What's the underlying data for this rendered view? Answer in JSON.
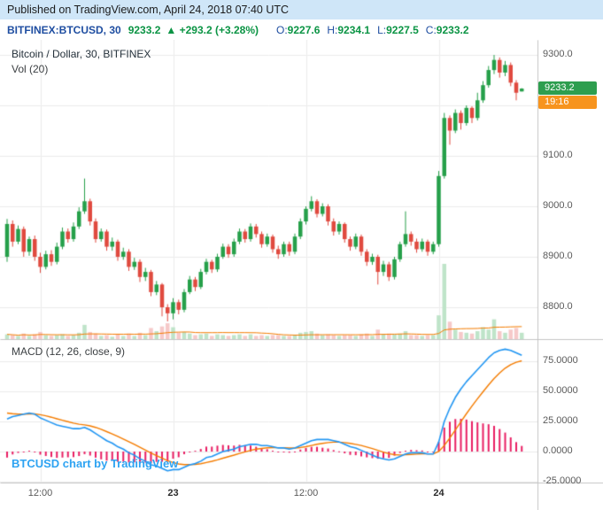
{
  "header": {
    "published": "Published on TradingView.com, April 24, 2018 07:40 UTC"
  },
  "ticker": {
    "symbol": "BITFINEX:BTCUSD, 30",
    "price": "9233.2",
    "change": "▲ +293.2 (+3.28%)",
    "o_label": "O:",
    "o_value": "9227.6",
    "h_label": "H:",
    "h_value": "9234.1",
    "l_label": "L:",
    "l_value": "9227.5",
    "c_label": "C:",
    "c_value": "9233.2"
  },
  "legend": {
    "main_title": "Bitcoin / Dollar, 30, BITFINEX",
    "volume": "Vol (20)",
    "macd": "MACD (12, 26, close, 9)"
  },
  "watermark": {
    "text": "BTCUSD chart by TradingView"
  },
  "axis": {
    "last_price": "9233.2",
    "countdown": "19:16"
  },
  "colors": {
    "up": "#26a04a",
    "down": "#e04a3f",
    "vol_up": "#bfe4c9",
    "vol_down": "#f6c9c9",
    "vol_ma": "#f57c00",
    "macd_line": "#2196f3",
    "signal_line": "#f57c00",
    "histogram": "#e91e63",
    "grid": "#ececec",
    "separator": "#c5c5c5",
    "price_tag_bg": "#2e9e4f",
    "countdown_bg": "#f7941e",
    "published_bg": "#cfe6f8"
  },
  "chart_data": {
    "type": "candlestick",
    "symbol": "BITFINEX:BTCUSD",
    "interval_minutes": 30,
    "title": "Bitcoin / Dollar, 30, BITFINEX",
    "price_axis": {
      "ticks": [
        9300,
        9200,
        9100,
        9000,
        8900,
        8800
      ],
      "tick_labels": [
        "9300.0",
        "9200.0",
        "9100.0",
        "9000.0",
        "8900.0",
        "8800.0"
      ],
      "visible_range": [
        8737,
        9330
      ]
    },
    "time_axis": {
      "ticks": [
        {
          "index": 6,
          "label": "12:00",
          "bold": false
        },
        {
          "index": 30,
          "label": "23",
          "bold": true
        },
        {
          "index": 54,
          "label": "12:00",
          "bold": false
        },
        {
          "index": 78,
          "label": "24",
          "bold": true
        }
      ]
    },
    "candles_ohlcv": [
      [
        8900,
        8975,
        8890,
        8965,
        6
      ],
      [
        8965,
        8972,
        8920,
        8930,
        5
      ],
      [
        8930,
        8962,
        8925,
        8955,
        4
      ],
      [
        8955,
        8960,
        8900,
        8910,
        7
      ],
      [
        8910,
        8940,
        8902,
        8935,
        4
      ],
      [
        8935,
        8942,
        8892,
        8900,
        6
      ],
      [
        8900,
        8908,
        8868,
        8880,
        9
      ],
      [
        8880,
        8912,
        8875,
        8905,
        5
      ],
      [
        8905,
        8913,
        8882,
        8890,
        4
      ],
      [
        8890,
        8928,
        8885,
        8920,
        5
      ],
      [
        8920,
        8958,
        8915,
        8950,
        6
      ],
      [
        8950,
        8956,
        8928,
        8935,
        4
      ],
      [
        8935,
        8968,
        8930,
        8960,
        5
      ],
      [
        8960,
        8998,
        8955,
        8990,
        8
      ],
      [
        8990,
        9055,
        8985,
        9010,
        18
      ],
      [
        9010,
        9015,
        8962,
        8970,
        9
      ],
      [
        8970,
        8976,
        8928,
        8935,
        7
      ],
      [
        8935,
        8956,
        8930,
        8950,
        4
      ],
      [
        8950,
        8954,
        8912,
        8920,
        5
      ],
      [
        8920,
        8938,
        8912,
        8930,
        3
      ],
      [
        8930,
        8934,
        8892,
        8900,
        6
      ],
      [
        8900,
        8918,
        8894,
        8910,
        4
      ],
      [
        8910,
        8915,
        8872,
        8880,
        7
      ],
      [
        8880,
        8898,
        8874,
        8890,
        4
      ],
      [
        8890,
        8895,
        8850,
        8860,
        8
      ],
      [
        8860,
        8878,
        8852,
        8870,
        5
      ],
      [
        8870,
        8874,
        8822,
        8830,
        14
      ],
      [
        8830,
        8852,
        8824,
        8845,
        10
      ],
      [
        8845,
        8848,
        8782,
        8800,
        16
      ],
      [
        8800,
        8806,
        8772,
        8788,
        20
      ],
      [
        8788,
        8818,
        8776,
        8810,
        15
      ],
      [
        8810,
        8815,
        8786,
        8795,
        8
      ],
      [
        8795,
        8836,
        8790,
        8830,
        9
      ],
      [
        8830,
        8862,
        8826,
        8855,
        7
      ],
      [
        8855,
        8860,
        8832,
        8840,
        5
      ],
      [
        8840,
        8876,
        8836,
        8870,
        6
      ],
      [
        8870,
        8896,
        8865,
        8890,
        7
      ],
      [
        8890,
        8894,
        8868,
        8875,
        4
      ],
      [
        8875,
        8906,
        8870,
        8900,
        6
      ],
      [
        8900,
        8926,
        8896,
        8920,
        5
      ],
      [
        8920,
        8925,
        8898,
        8905,
        4
      ],
      [
        8905,
        8936,
        8900,
        8930,
        5
      ],
      [
        8930,
        8956,
        8925,
        8950,
        6
      ],
      [
        8950,
        8955,
        8928,
        8935,
        4
      ],
      [
        8935,
        8966,
        8930,
        8960,
        6
      ],
      [
        8960,
        8965,
        8938,
        8945,
        4
      ],
      [
        8945,
        8950,
        8918,
        8925,
        5
      ],
      [
        8925,
        8946,
        8920,
        8940,
        4
      ],
      [
        8940,
        8944,
        8908,
        8915,
        5
      ],
      [
        8915,
        8922,
        8896,
        8905,
        5
      ],
      [
        8905,
        8930,
        8900,
        8925,
        4
      ],
      [
        8925,
        8930,
        8902,
        8910,
        4
      ],
      [
        8910,
        8946,
        8905,
        8940,
        5
      ],
      [
        8940,
        8976,
        8935,
        8970,
        8
      ],
      [
        8970,
        9000,
        8964,
        8995,
        9
      ],
      [
        8995,
        9020,
        8990,
        9010,
        10
      ],
      [
        9010,
        9014,
        8978,
        8985,
        7
      ],
      [
        8985,
        9006,
        8980,
        9000,
        5
      ],
      [
        9000,
        9004,
        8962,
        8970,
        6
      ],
      [
        8970,
        8976,
        8942,
        8950,
        5
      ],
      [
        8950,
        8970,
        8944,
        8965,
        4
      ],
      [
        8965,
        8968,
        8928,
        8935,
        5
      ],
      [
        8935,
        8940,
        8912,
        8920,
        5
      ],
      [
        8920,
        8946,
        8915,
        8940,
        4
      ],
      [
        8940,
        8944,
        8902,
        8910,
        6
      ],
      [
        8910,
        8915,
        8882,
        8890,
        7
      ],
      [
        8890,
        8906,
        8884,
        8900,
        4
      ],
      [
        8900,
        8904,
        8845,
        8870,
        12
      ],
      [
        8870,
        8892,
        8862,
        8885,
        6
      ],
      [
        8885,
        8890,
        8852,
        8860,
        7
      ],
      [
        8860,
        8900,
        8855,
        8895,
        6
      ],
      [
        8895,
        8930,
        8890,
        8925,
        7
      ],
      [
        8925,
        8990,
        8920,
        8945,
        10
      ],
      [
        8945,
        8950,
        8922,
        8930,
        5
      ],
      [
        8930,
        8936,
        8908,
        8915,
        5
      ],
      [
        8915,
        8936,
        8910,
        8930,
        4
      ],
      [
        8930,
        8934,
        8902,
        8910,
        5
      ],
      [
        8910,
        8930,
        8905,
        8925,
        5
      ],
      [
        8925,
        9070,
        8920,
        9060,
        30
      ],
      [
        9060,
        9185,
        9055,
        9175,
        95
      ],
      [
        9175,
        9180,
        9122,
        9150,
        22
      ],
      [
        9150,
        9192,
        9145,
        9185,
        12
      ],
      [
        9185,
        9190,
        9152,
        9165,
        9
      ],
      [
        9165,
        9200,
        9160,
        9195,
        8
      ],
      [
        9195,
        9198,
        9165,
        9175,
        7
      ],
      [
        9175,
        9225,
        9170,
        9210,
        10
      ],
      [
        9210,
        9248,
        9205,
        9240,
        15
      ],
      [
        9240,
        9278,
        9235,
        9270,
        12
      ],
      [
        9270,
        9300,
        9262,
        9290,
        25
      ],
      [
        9290,
        9295,
        9255,
        9265,
        10
      ],
      [
        9265,
        9288,
        9258,
        9280,
        8
      ],
      [
        9280,
        9285,
        9238,
        9245,
        12
      ],
      [
        9245,
        9250,
        9210,
        9225,
        14
      ],
      [
        9227.6,
        9234.1,
        9227.5,
        9233.2,
        8
      ]
    ],
    "volume_ma_period": 20,
    "last_price": 9233.2,
    "macd": {
      "params": "12, 26, close, 9",
      "axis_ticks": [
        75,
        50,
        25,
        0,
        -25
      ],
      "axis_tick_labels": [
        "75.0000",
        "50.0000",
        "25.0000",
        "0.0000",
        "-25.0000"
      ],
      "signal_seed": 32,
      "signal_smoothing": 0.2,
      "macd_line": [
        27,
        29,
        30,
        31,
        32,
        31,
        28,
        26,
        24,
        22,
        21,
        20,
        19,
        19,
        20,
        18,
        15,
        12,
        9,
        7,
        4,
        2,
        -1,
        -3,
        -6,
        -8,
        -11,
        -12,
        -14,
        -16,
        -15,
        -15,
        -13,
        -11,
        -10,
        -8,
        -5,
        -4,
        -2,
        0,
        1,
        2,
        4,
        5,
        6,
        6,
        5,
        5,
        4,
        3,
        3,
        2,
        3,
        5,
        7,
        9,
        10,
        10,
        10,
        9,
        8,
        6,
        4,
        3,
        1,
        -1,
        -3,
        -5,
        -6,
        -7,
        -6,
        -4,
        -2,
        -1,
        -1,
        -1,
        -2,
        -2,
        8,
        25,
        36,
        45,
        52,
        58,
        63,
        68,
        73,
        78,
        82,
        84,
        85,
        84,
        82,
        80
      ]
    }
  }
}
